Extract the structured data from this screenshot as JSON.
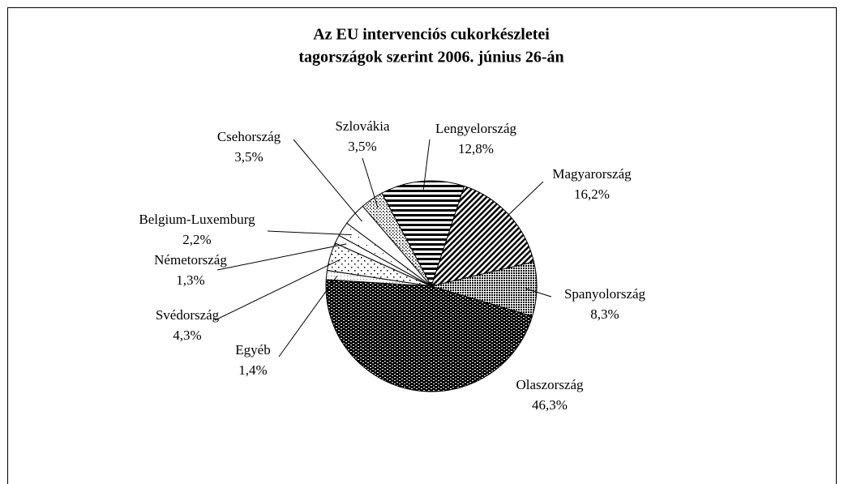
{
  "chart_data": {
    "type": "pie",
    "title": [
      "Az EU intervenciós cukorkészletei",
      "tagországok szerint 2006. június 26-án"
    ],
    "categories": [
      "Lengyelország",
      "Magyarország",
      "Spanyolország",
      "Olaszország",
      "Egyéb",
      "Svédország",
      "Németország",
      "Belgium-Luxemburg",
      "Csehország",
      "Szlovákia"
    ],
    "values": [
      12.8,
      16.2,
      8.3,
      46.3,
      1.4,
      4.3,
      1.3,
      2.2,
      3.5,
      3.5
    ],
    "value_labels": [
      "12,8%",
      "16,2%",
      "8,3%",
      "46,3%",
      "1,4%",
      "4,3%",
      "1,3%",
      "2,2%",
      "3,5%",
      "3,5%"
    ]
  }
}
